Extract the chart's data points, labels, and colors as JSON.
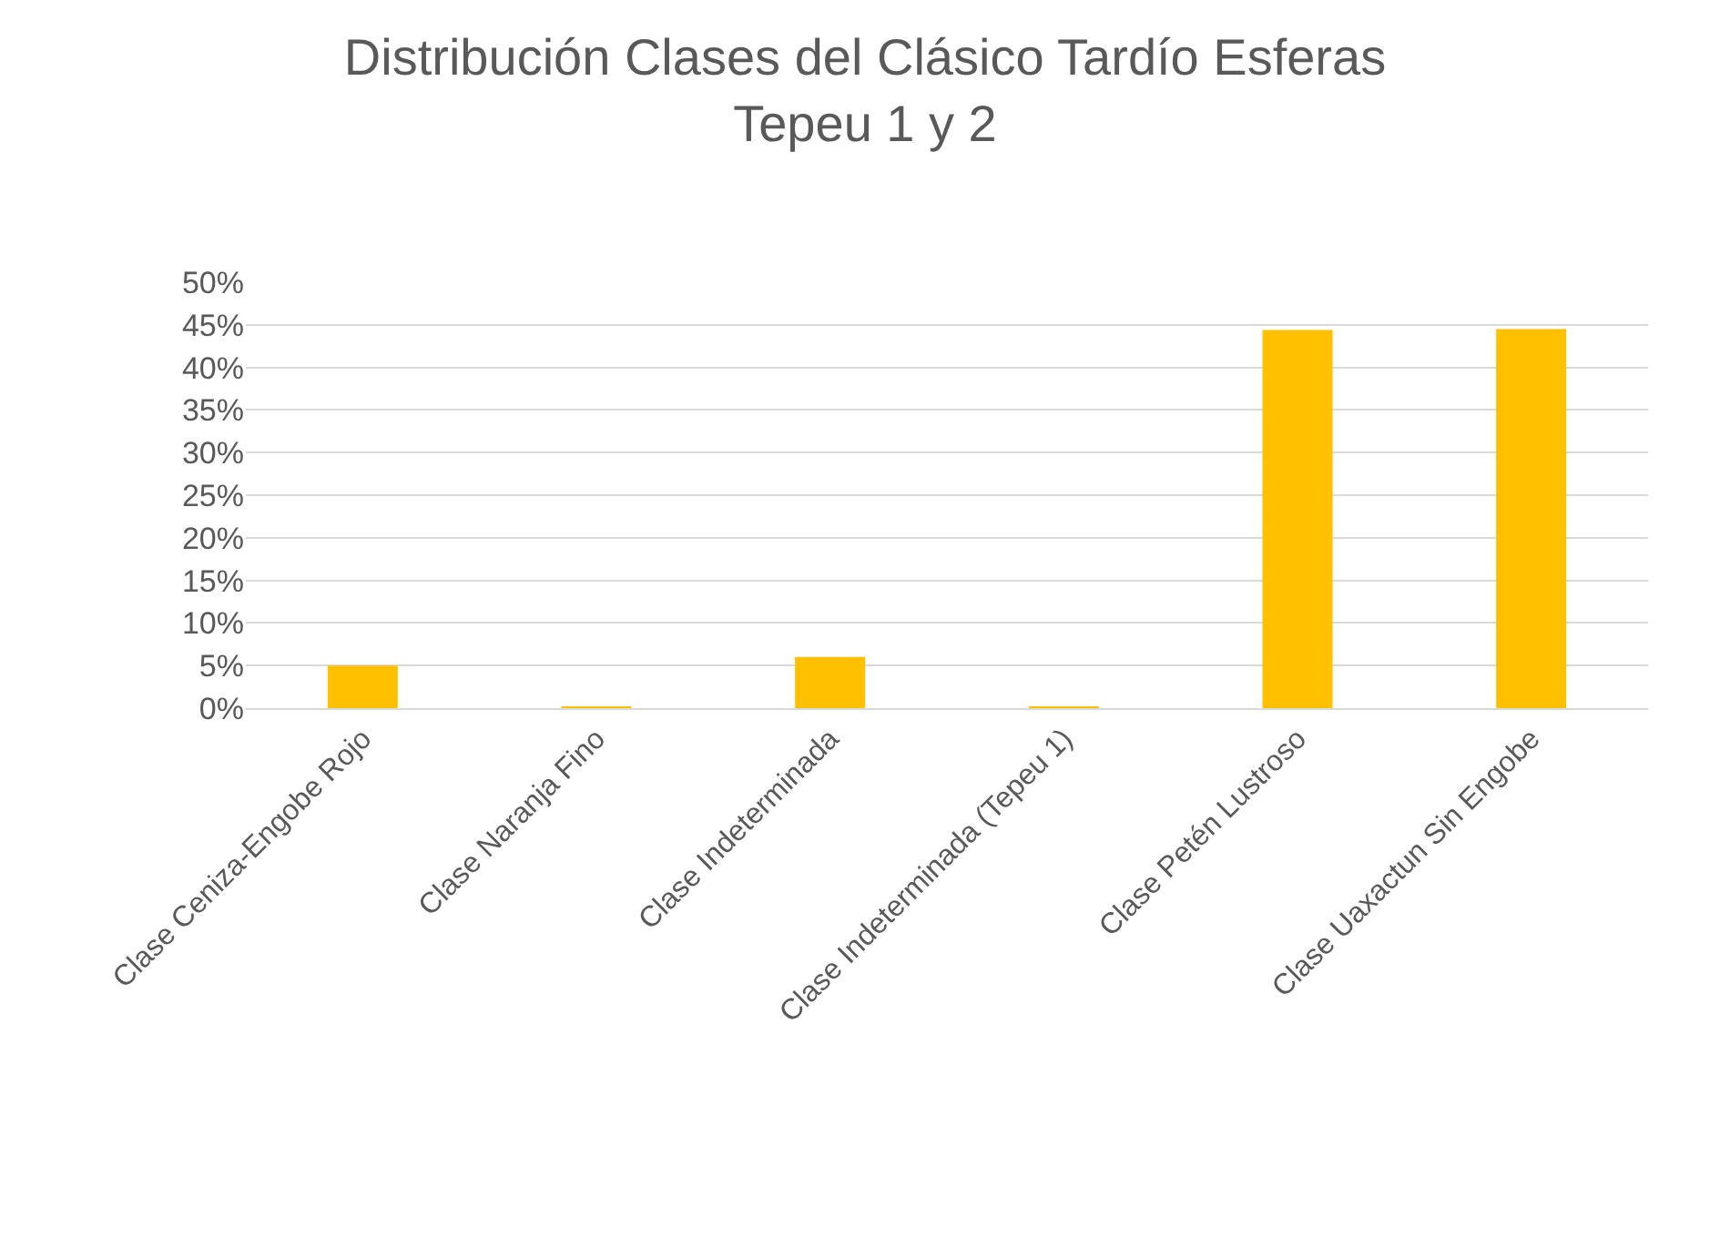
{
  "chart_data": {
    "type": "bar",
    "title": "Distribución Clases del Clásico Tardío Esferas\nTepeu 1 y 2",
    "categories": [
      "Clase Ceniza-Engobe Rojo",
      "Clase Naranja Fino",
      "Clase Indeterminada",
      "Clase Indeterminada (Tepeu 1)",
      "Clase Petén Lustroso",
      "Clase Uaxactun Sin Engobe"
    ],
    "values": [
      5.0,
      0.1,
      6.0,
      0.1,
      44.4,
      44.5
    ],
    "color": "#ffc000",
    "ylim": [
      0,
      50
    ],
    "yticks": [
      {
        "value": 0,
        "label": "0%"
      },
      {
        "value": 5,
        "label": "5%"
      },
      {
        "value": 10,
        "label": "10%"
      },
      {
        "value": 15,
        "label": "15%"
      },
      {
        "value": 20,
        "label": "20%"
      },
      {
        "value": 25,
        "label": "25%"
      },
      {
        "value": 30,
        "label": "30%"
      },
      {
        "value": 35,
        "label": "35%"
      },
      {
        "value": 40,
        "label": "40%"
      },
      {
        "value": 45,
        "label": "45%"
      },
      {
        "value": 50,
        "label": "50%"
      }
    ],
    "grid": "y"
  }
}
